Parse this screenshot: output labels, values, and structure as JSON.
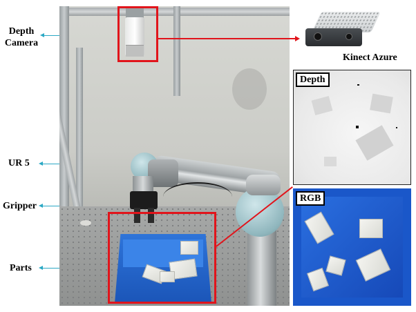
{
  "labels": {
    "depth_camera_line1": "Depth",
    "depth_camera_line2": "Camera",
    "ur5": "UR 5",
    "gripper": "Gripper",
    "parts": "Parts",
    "kinect": "Kinect Azure"
  },
  "insets": {
    "depth": "Depth",
    "rgb": "RGB"
  },
  "colors": {
    "highlight": "#e1141b",
    "pointer": "#2aa8c4",
    "bin_blue": "#1b55b8"
  }
}
